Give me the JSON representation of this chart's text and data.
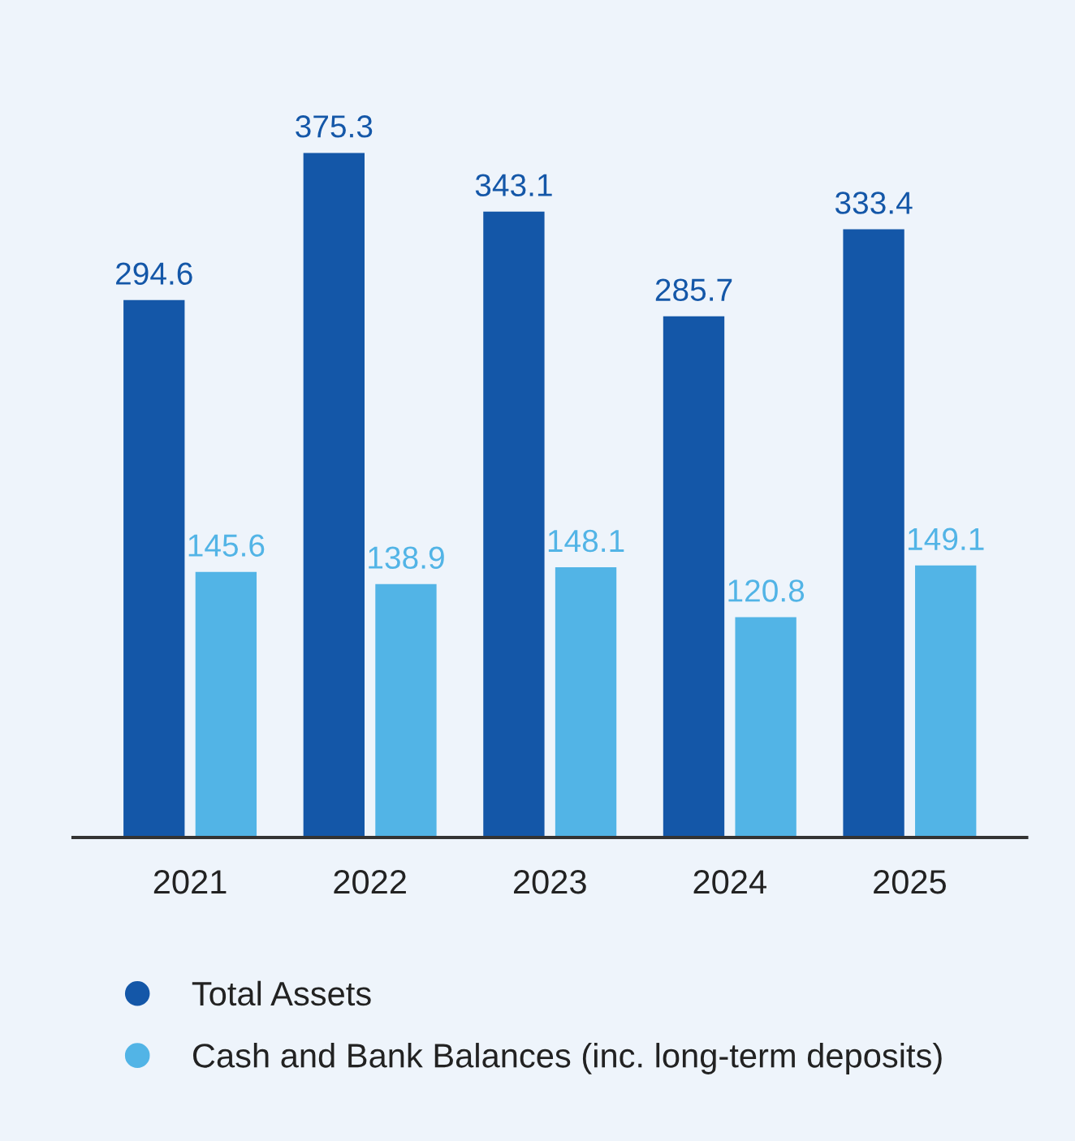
{
  "chart_data": {
    "type": "bar",
    "categories": [
      "2021",
      "2022",
      "2023",
      "2024",
      "2025"
    ],
    "series": [
      {
        "name": "Total Assets",
        "color": "#1457a8",
        "values": [
          294.6,
          375.3,
          343.1,
          285.7,
          333.4
        ]
      },
      {
        "name": "Cash and Bank Balances (inc. long-term deposits)",
        "color": "#52b4e6",
        "values": [
          145.6,
          138.9,
          148.1,
          120.8,
          149.1
        ]
      }
    ],
    "data_labels": true,
    "grid": false,
    "legend": "bottom",
    "marker": "circle"
  }
}
